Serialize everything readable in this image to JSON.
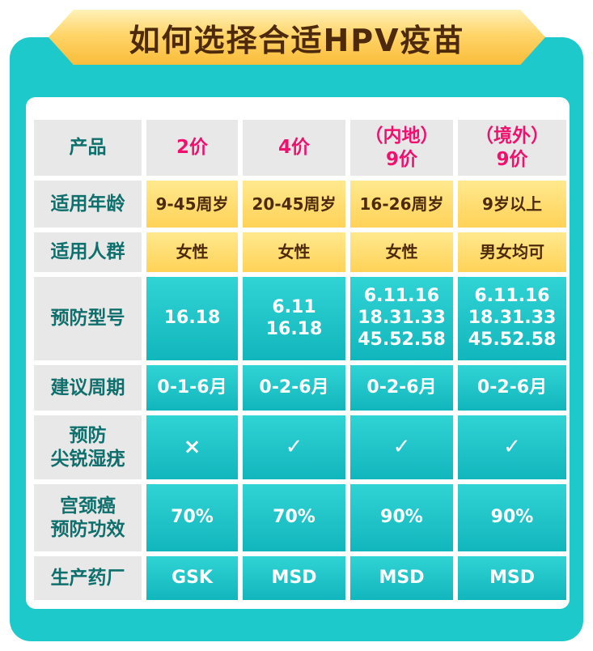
{
  "title": "如何选择合适HPV疫苗",
  "table": {
    "rows": [
      {
        "label": "产品",
        "cells": [
          "2价",
          "4价",
          "（内地）\n9价",
          "（境外）\n9价"
        ]
      },
      {
        "label": "适用年龄",
        "cells": [
          "9-45周岁",
          "20-45周岁",
          "16-26周岁",
          "9岁以上"
        ]
      },
      {
        "label": "适用人群",
        "cells": [
          "女性",
          "女性",
          "女性",
          "男女均可"
        ]
      },
      {
        "label": "预防型号",
        "cells": [
          "16.18",
          "6.11\n16.18",
          "6.11.16\n18.31.33\n45.52.58",
          "6.11.16\n18.31.33\n45.52.58"
        ]
      },
      {
        "label": "建议周期",
        "cells": [
          "0-1-6月",
          "0-2-6月",
          "0-2-6月",
          "0-2-6月"
        ]
      },
      {
        "label": "预防\n尖锐湿疣",
        "cells": [
          "×",
          "✓",
          "✓",
          "✓"
        ]
      },
      {
        "label": "宫颈癌\n预防功效",
        "cells": [
          "70%",
          "70%",
          "90%",
          "90%"
        ]
      },
      {
        "label": "生产药厂",
        "cells": [
          "GSK",
          "MSD",
          "MSD",
          "MSD"
        ]
      }
    ]
  }
}
